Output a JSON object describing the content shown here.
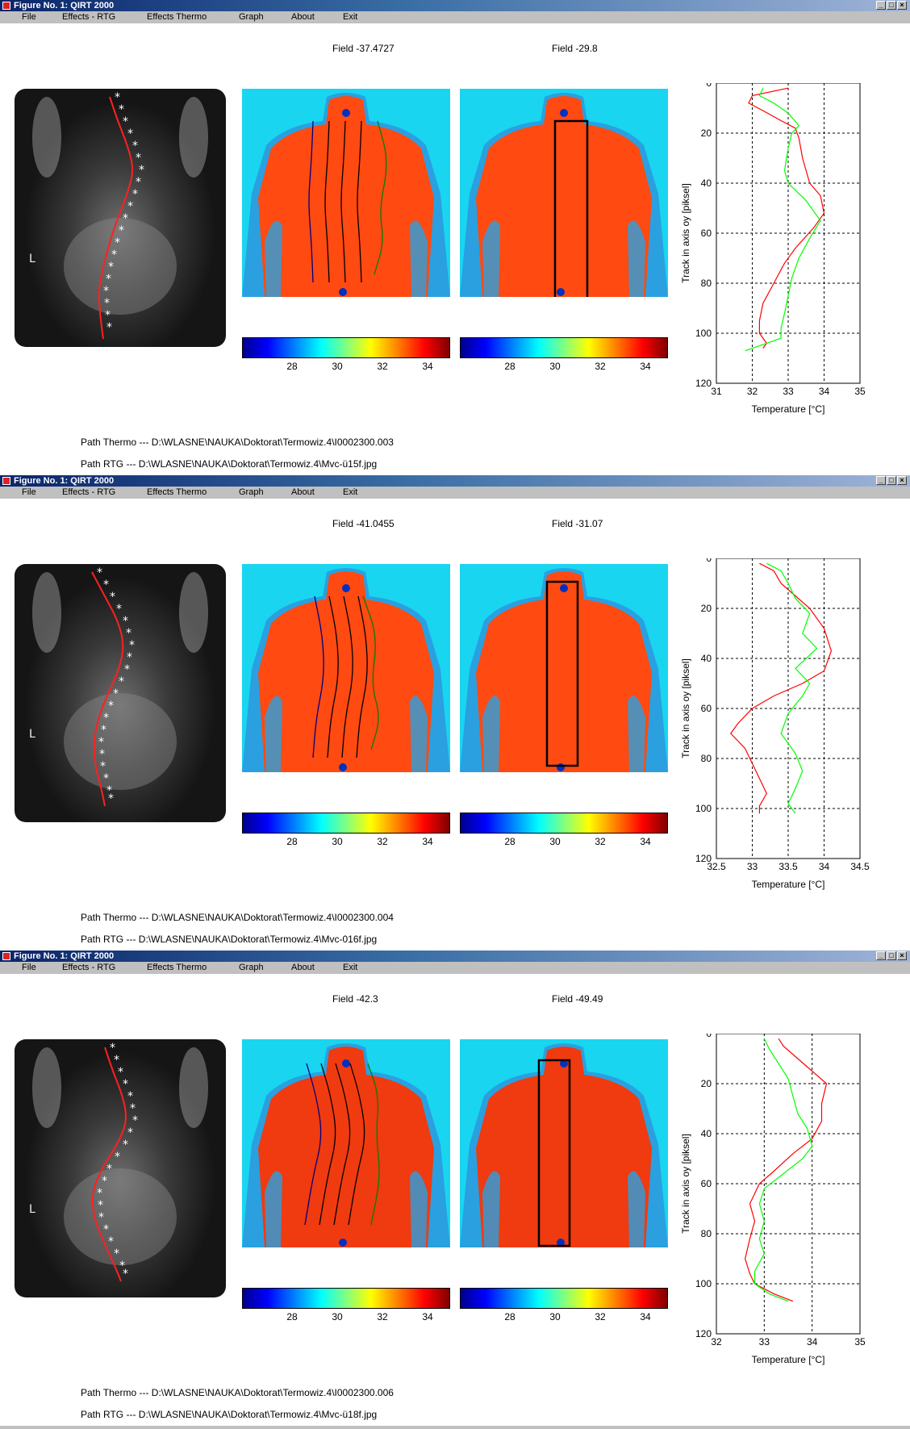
{
  "windows": [
    {
      "title": "Figure No. 1: QIRT 2000",
      "menu": [
        "File",
        "Effects - RTG",
        "Effects Thermo",
        "Graph",
        "About",
        "Exit"
      ],
      "field_left": "Field -37.4727",
      "field_right": "Field -29.8",
      "colorbar_ticks": [
        "28",
        "30",
        "32",
        "34"
      ],
      "path_thermo": "Path Thermo --- D:\\WLASNE\\NAUKA\\Doktorat\\Termowiz.4\\I0002300.003",
      "path_rtg": "Path RTG --- D:\\WLASNE\\NAUKA\\Doktorat\\Termowiz.4\\Mvc-ü15f.jpg",
      "xray_marker": "L"
    },
    {
      "title": "Figure No. 1: QIRT 2000",
      "menu": [
        "File",
        "Effects - RTG",
        "Effects Thermo",
        "Graph",
        "About",
        "Exit"
      ],
      "field_left": "Field -41.0455",
      "field_right": "Field -31.07",
      "colorbar_ticks": [
        "28",
        "30",
        "32",
        "34"
      ],
      "path_thermo": "Path Thermo --- D:\\WLASNE\\NAUKA\\Doktorat\\Termowiz.4\\I0002300.004",
      "path_rtg": "Path RTG --- D:\\WLASNE\\NAUKA\\Doktorat\\Termowiz.4\\Mvc-016f.jpg",
      "xray_marker": "L"
    },
    {
      "title": "Figure No. 1: QIRT 2000",
      "menu": [
        "File",
        "Effects - RTG",
        "Effects Thermo",
        "Graph",
        "About",
        "Exit"
      ],
      "field_left": "Field -42.3",
      "field_right": "Field -49.49",
      "colorbar_ticks": [
        "28",
        "30",
        "32",
        "34"
      ],
      "path_thermo": "Path Thermo --- D:\\WLASNE\\NAUKA\\Doktorat\\Termowiz.4\\I0002300.006",
      "path_rtg": "Path RTG --- D:\\WLASNE\\NAUKA\\Doktorat\\Termowiz.4\\Mvc-ü18f.jpg",
      "xray_marker": "L"
    }
  ],
  "colors": {
    "red_series": "#ff0000",
    "green_series": "#00ff00",
    "titlebar": "#0a246a",
    "thermo_bg": "#19d5f0"
  },
  "chart_data": [
    {
      "type": "line",
      "xlabel": "Temperature [°C]",
      "ylabel": "Track in axis oy [piksel]",
      "xlim": [
        31,
        35
      ],
      "ylim": [
        0,
        120
      ],
      "y_reversed": true,
      "xticks": [
        "31",
        "32",
        "33",
        "34",
        "35"
      ],
      "yticks": [
        "0",
        "20",
        "40",
        "60",
        "80",
        "100",
        "120"
      ],
      "grid": true,
      "series": [
        {
          "color": "#ff0000",
          "x": [
            33.0,
            32.0,
            31.9,
            32.3,
            32.8,
            33.2,
            33.3,
            33.4,
            33.6,
            33.9,
            34.0,
            33.7,
            33.2,
            32.9,
            32.6,
            32.3,
            32.2,
            32.2,
            32.4,
            32.3
          ],
          "y": [
            2,
            5,
            8,
            11,
            15,
            18,
            22,
            30,
            40,
            45,
            52,
            58,
            66,
            72,
            80,
            88,
            95,
            100,
            104,
            106
          ]
        },
        {
          "color": "#00ff00",
          "x": [
            32.3,
            32.2,
            32.6,
            33.0,
            33.3,
            33.1,
            33.0,
            32.9,
            33.0,
            33.5,
            33.9,
            33.6,
            33.3,
            33.1,
            33.0,
            32.9,
            32.8,
            32.8,
            32.4,
            31.8
          ],
          "y": [
            2,
            5,
            8,
            12,
            17,
            20,
            26,
            35,
            40,
            47,
            55,
            62,
            70,
            78,
            85,
            92,
            98,
            102,
            104,
            107
          ]
        }
      ]
    },
    {
      "type": "line",
      "xlabel": "Temperature [°C]",
      "ylabel": "Track in axis oy [piksel]",
      "xlim": [
        32.5,
        34.5
      ],
      "ylim": [
        0,
        120
      ],
      "y_reversed": true,
      "xticks": [
        "32.5",
        "33",
        "33.5",
        "34",
        "34.5"
      ],
      "yticks": [
        "0",
        "20",
        "40",
        "60",
        "80",
        "100",
        "120"
      ],
      "grid": true,
      "series": [
        {
          "color": "#ff0000",
          "x": [
            33.1,
            33.3,
            33.4,
            33.6,
            33.8,
            34.0,
            34.1,
            34.0,
            33.7,
            33.3,
            33.0,
            32.8,
            32.7,
            32.9,
            33.0,
            33.1,
            33.2,
            33.1,
            33.1
          ],
          "y": [
            2,
            5,
            10,
            15,
            20,
            28,
            37,
            45,
            50,
            55,
            60,
            66,
            70,
            76,
            82,
            88,
            94,
            99,
            102
          ]
        },
        {
          "color": "#00ff00",
          "x": [
            33.2,
            33.4,
            33.5,
            33.6,
            33.8,
            33.7,
            33.9,
            33.6,
            33.8,
            33.7,
            33.5,
            33.4,
            33.6,
            33.7,
            33.6,
            33.5,
            33.6
          ],
          "y": [
            2,
            5,
            10,
            16,
            22,
            30,
            36,
            44,
            50,
            55,
            62,
            70,
            78,
            85,
            92,
            98,
            102
          ]
        }
      ]
    },
    {
      "type": "line",
      "xlabel": "Temperature [°C]",
      "ylabel": "Track in axis oy [piksel]",
      "xlim": [
        32,
        35
      ],
      "ylim": [
        0,
        120
      ],
      "y_reversed": true,
      "xticks": [
        "32",
        "33",
        "34",
        "35"
      ],
      "yticks": [
        "0",
        "20",
        "40",
        "60",
        "80",
        "100",
        "120"
      ],
      "grid": true,
      "series": [
        {
          "color": "#ff0000",
          "x": [
            33.3,
            33.4,
            33.7,
            34.0,
            34.3,
            34.2,
            34.2,
            34.0,
            33.6,
            33.2,
            32.9,
            32.7,
            32.8,
            32.7,
            32.6,
            32.7,
            32.8,
            33.2,
            33.6
          ],
          "y": [
            2,
            5,
            10,
            15,
            20,
            28,
            35,
            42,
            48,
            55,
            60,
            68,
            75,
            82,
            90,
            96,
            100,
            104,
            107
          ]
        },
        {
          "color": "#00ff00",
          "x": [
            33.0,
            33.1,
            33.3,
            33.5,
            33.6,
            33.7,
            33.9,
            34.0,
            33.8,
            33.4,
            33.0,
            32.9,
            33.0,
            32.9,
            33.0,
            32.8,
            32.8,
            33.1,
            33.5
          ],
          "y": [
            2,
            6,
            12,
            18,
            25,
            32,
            38,
            45,
            50,
            56,
            62,
            68,
            75,
            82,
            88,
            95,
            100,
            104,
            107
          ]
        }
      ]
    }
  ]
}
